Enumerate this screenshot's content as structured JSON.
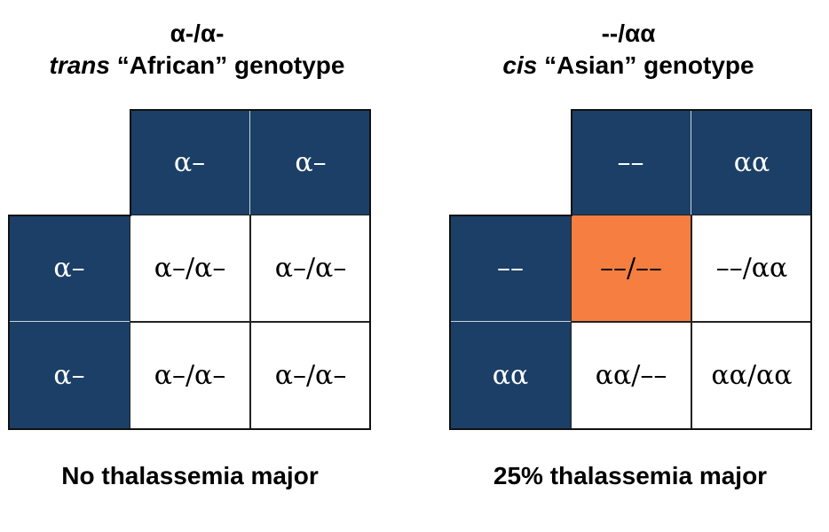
{
  "left": {
    "heading_line1": "α-/α-",
    "heading_italic": "trans",
    "heading_rest": " “African” genotype",
    "col_headers": [
      "α–",
      "α–"
    ],
    "row_headers": [
      "α–",
      "α–"
    ],
    "cells": [
      [
        "α–/α–",
        "α–/α–"
      ],
      [
        "α–/α–",
        "α–/α–"
      ]
    ],
    "caption": "No thalassemia major"
  },
  "right": {
    "heading_line1": "--/αα",
    "heading_italic": "cis",
    "heading_rest": " “Asian” genotype",
    "col_headers": [
      "––",
      "αα"
    ],
    "row_headers": [
      "––",
      "αα"
    ],
    "cells": [
      [
        "––/––",
        "––/αα"
      ],
      [
        "αα/––",
        "αα/αα"
      ]
    ],
    "caption": "25% thalassemia major"
  },
  "colors": {
    "header_fill": "#1b3f66",
    "highlight_fill": "#f57e40"
  }
}
